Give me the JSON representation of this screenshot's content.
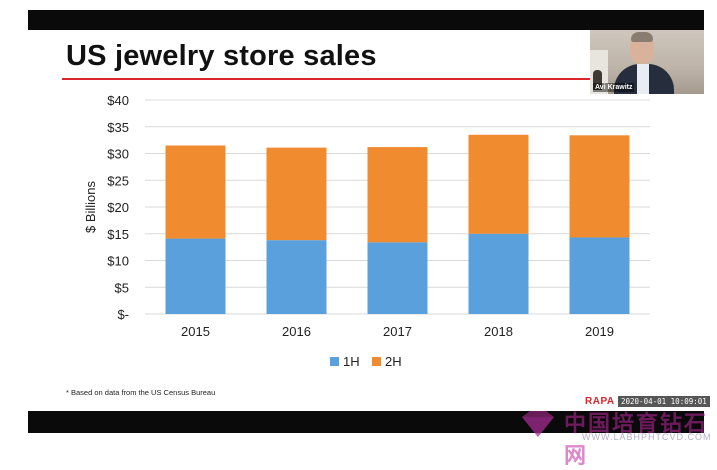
{
  "slide": {
    "title": "US jewelry store sales",
    "footnote": "* Based on data from the US Census Bureau",
    "brand": "RAPA",
    "timestamp": "2020-04-01 10:09:01"
  },
  "webcam": {
    "participant_name": "Avi Krawitz"
  },
  "watermark": {
    "text_cn": "中国培育钻石网",
    "url": "WWW.LABHPHTCVD.COM"
  },
  "colors": {
    "series_1H": "#5aa0dd",
    "series_2H": "#f08c2f",
    "title_rule": "#d9262b",
    "grid": "#d9d9d9"
  },
  "chart_data": {
    "type": "bar",
    "stacked": true,
    "categories": [
      "2015",
      "2016",
      "2017",
      "2018",
      "2019"
    ],
    "series": [
      {
        "name": "1H",
        "values": [
          14.1,
          13.8,
          13.4,
          15.0,
          14.3
        ]
      },
      {
        "name": "2H",
        "values": [
          17.4,
          17.3,
          17.8,
          18.5,
          19.1
        ]
      }
    ],
    "ylabel": "$ Billions",
    "ylim": [
      0,
      40
    ],
    "yticks": [
      0,
      5,
      10,
      15,
      20,
      25,
      30,
      35,
      40
    ],
    "ytick_labels": [
      "$-",
      "$5",
      "$10",
      "$15",
      "$20",
      "$25",
      "$30",
      "$35",
      "$40"
    ],
    "grid": true,
    "legend_position": "bottom"
  }
}
